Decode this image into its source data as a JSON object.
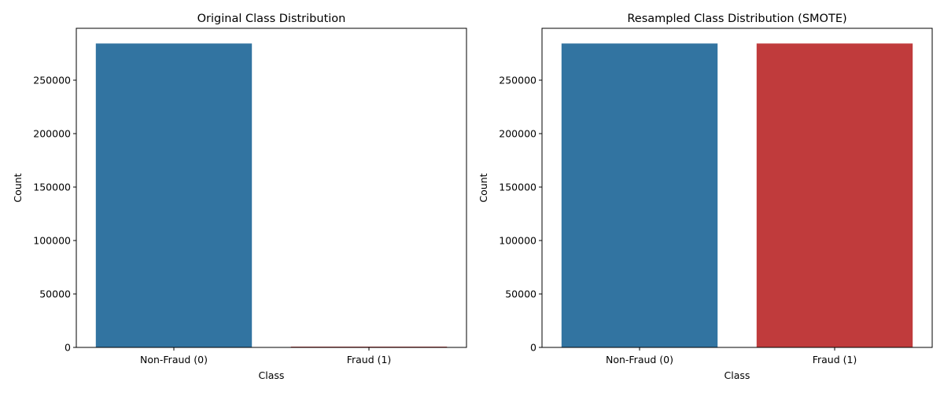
{
  "colors": {
    "non_fraud": "#3274a1",
    "fraud": "#c03b3c"
  },
  "chart_data": [
    {
      "type": "bar",
      "title": "Original Class Distribution",
      "xlabel": "Class",
      "ylabel": "Count",
      "categories": [
        "Non-Fraud (0)",
        "Fraud (1)"
      ],
      "values": [
        284315,
        492
      ],
      "ylim": [
        0,
        298530
      ],
      "yticks": [
        0,
        50000,
        100000,
        150000,
        200000,
        250000
      ],
      "grid": false,
      "legend": "none"
    },
    {
      "type": "bar",
      "title": "Resampled Class Distribution (SMOTE)",
      "xlabel": "Class",
      "ylabel": "Count",
      "categories": [
        "Non-Fraud (0)",
        "Fraud (1)"
      ],
      "values": [
        284315,
        284315
      ],
      "ylim": [
        0,
        298530
      ],
      "yticks": [
        0,
        50000,
        100000,
        150000,
        200000,
        250000
      ],
      "grid": false,
      "legend": "none"
    }
  ]
}
